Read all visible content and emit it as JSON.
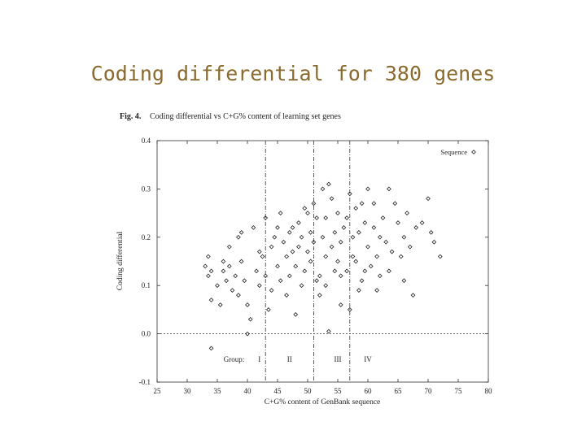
{
  "slide": {
    "title": "Coding differential for 380 genes"
  },
  "figure": {
    "label": "Fig. 4.",
    "caption": "Coding differential vs C+G% content of learning set genes"
  },
  "chart_data": {
    "type": "scatter",
    "title": "Coding differential vs C+G% content of learning set genes",
    "xlabel": "C+G% content of GenBank sequence",
    "ylabel": "Coding differential",
    "xlim": [
      25,
      80
    ],
    "ylim": [
      -0.1,
      0.4
    ],
    "xticks": [
      25,
      30,
      35,
      40,
      45,
      50,
      55,
      60,
      65,
      70,
      75,
      80
    ],
    "yticks": [
      -0.1,
      0.0,
      0.1,
      0.2,
      0.3,
      0.4
    ],
    "ytick_labels": [
      "-0.1",
      "0.0",
      "0.1",
      "0.2",
      "0.3",
      "0.4"
    ],
    "legend": {
      "label": "Sequence",
      "position": "top-right",
      "marker": "diamond"
    },
    "group_boundaries": [
      43,
      51,
      57
    ],
    "horizontal_reference": 0.0,
    "group_label_prefix": "Group:",
    "groups": [
      {
        "label": "I",
        "x": 42
      },
      {
        "label": "II",
        "x": 47
      },
      {
        "label": "III",
        "x": 55
      },
      {
        "label": "IV",
        "x": 60
      }
    ],
    "grid": false,
    "series": [
      {
        "name": "Sequence",
        "marker": "diamond",
        "points": [
          [
            34,
            -0.03
          ],
          [
            40,
            0.0
          ],
          [
            53.5,
            0.005
          ],
          [
            33.5,
            0.16
          ],
          [
            33,
            0.14
          ],
          [
            34,
            0.13
          ],
          [
            33.5,
            0.12
          ],
          [
            35,
            0.1
          ],
          [
            34,
            0.07
          ],
          [
            35.5,
            0.06
          ],
          [
            36,
            0.13
          ],
          [
            36.5,
            0.11
          ],
          [
            37,
            0.14
          ],
          [
            37.5,
            0.09
          ],
          [
            38,
            0.12
          ],
          [
            38.5,
            0.08
          ],
          [
            36,
            0.15
          ],
          [
            37,
            0.18
          ],
          [
            38.5,
            0.2
          ],
          [
            39,
            0.15
          ],
          [
            39.5,
            0.11
          ],
          [
            40,
            0.06
          ],
          [
            40.5,
            0.03
          ],
          [
            41,
            0.22
          ],
          [
            41.5,
            0.13
          ],
          [
            42,
            0.1
          ],
          [
            42,
            0.17
          ],
          [
            42.5,
            0.16
          ],
          [
            43,
            0.12
          ],
          [
            43.5,
            0.05
          ],
          [
            44,
            0.18
          ],
          [
            44,
            0.09
          ],
          [
            44.5,
            0.2
          ],
          [
            45,
            0.14
          ],
          [
            45,
            0.22
          ],
          [
            45.5,
            0.11
          ],
          [
            46,
            0.19
          ],
          [
            46.5,
            0.08
          ],
          [
            46.5,
            0.16
          ],
          [
            47,
            0.12
          ],
          [
            47,
            0.21
          ],
          [
            47.5,
            0.17
          ],
          [
            48,
            0.04
          ],
          [
            48,
            0.14
          ],
          [
            48.5,
            0.23
          ],
          [
            48.5,
            0.18
          ],
          [
            49,
            0.1
          ],
          [
            49,
            0.2
          ],
          [
            49.5,
            0.13
          ],
          [
            50,
            0.25
          ],
          [
            50,
            0.17
          ],
          [
            50.5,
            0.15
          ],
          [
            50.5,
            0.21
          ],
          [
            51,
            0.19
          ],
          [
            51,
            0.27
          ],
          [
            51.5,
            0.24
          ],
          [
            52,
            0.12
          ],
          [
            52,
            0.08
          ],
          [
            52.5,
            0.2
          ],
          [
            52.5,
            0.3
          ],
          [
            53,
            0.16
          ],
          [
            53,
            0.24
          ],
          [
            53.5,
            0.31
          ],
          [
            54,
            0.18
          ],
          [
            54,
            0.28
          ],
          [
            54.5,
            0.13
          ],
          [
            54.5,
            0.21
          ],
          [
            55,
            0.25
          ],
          [
            55,
            0.15
          ],
          [
            55.5,
            0.19
          ],
          [
            55.5,
            0.06
          ],
          [
            56,
            0.22
          ],
          [
            56.5,
            0.13
          ],
          [
            56.5,
            0.24
          ],
          [
            57,
            0.05
          ],
          [
            57,
            0.29
          ],
          [
            57.5,
            0.2
          ],
          [
            58,
            0.15
          ],
          [
            58,
            0.26
          ],
          [
            58.5,
            0.09
          ],
          [
            58.5,
            0.21
          ],
          [
            59,
            0.27
          ],
          [
            59,
            0.11
          ],
          [
            59.5,
            0.23
          ],
          [
            60,
            0.18
          ],
          [
            60,
            0.3
          ],
          [
            60.5,
            0.14
          ],
          [
            61,
            0.22
          ],
          [
            61,
            0.27
          ],
          [
            61.5,
            0.16
          ],
          [
            62,
            0.2
          ],
          [
            62,
            0.12
          ],
          [
            62.5,
            0.24
          ],
          [
            63,
            0.19
          ],
          [
            63.5,
            0.3
          ],
          [
            64,
            0.17
          ],
          [
            64.5,
            0.27
          ],
          [
            65,
            0.23
          ],
          [
            65.5,
            0.16
          ],
          [
            66,
            0.2
          ],
          [
            66.5,
            0.25
          ],
          [
            67,
            0.18
          ],
          [
            67.5,
            0.08
          ],
          [
            68,
            0.22
          ],
          [
            69,
            0.23
          ],
          [
            70,
            0.28
          ],
          [
            70.5,
            0.21
          ],
          [
            71,
            0.19
          ],
          [
            72,
            0.16
          ],
          [
            39,
            0.21
          ],
          [
            43,
            0.24
          ],
          [
            45.5,
            0.25
          ],
          [
            47.5,
            0.22
          ],
          [
            49.5,
            0.26
          ],
          [
            51.5,
            0.11
          ],
          [
            53,
            0.1
          ],
          [
            55.5,
            0.12
          ],
          [
            57.5,
            0.16
          ],
          [
            59.5,
            0.13
          ],
          [
            61.5,
            0.09
          ],
          [
            63.5,
            0.13
          ],
          [
            66,
            0.11
          ]
        ]
      }
    ]
  }
}
